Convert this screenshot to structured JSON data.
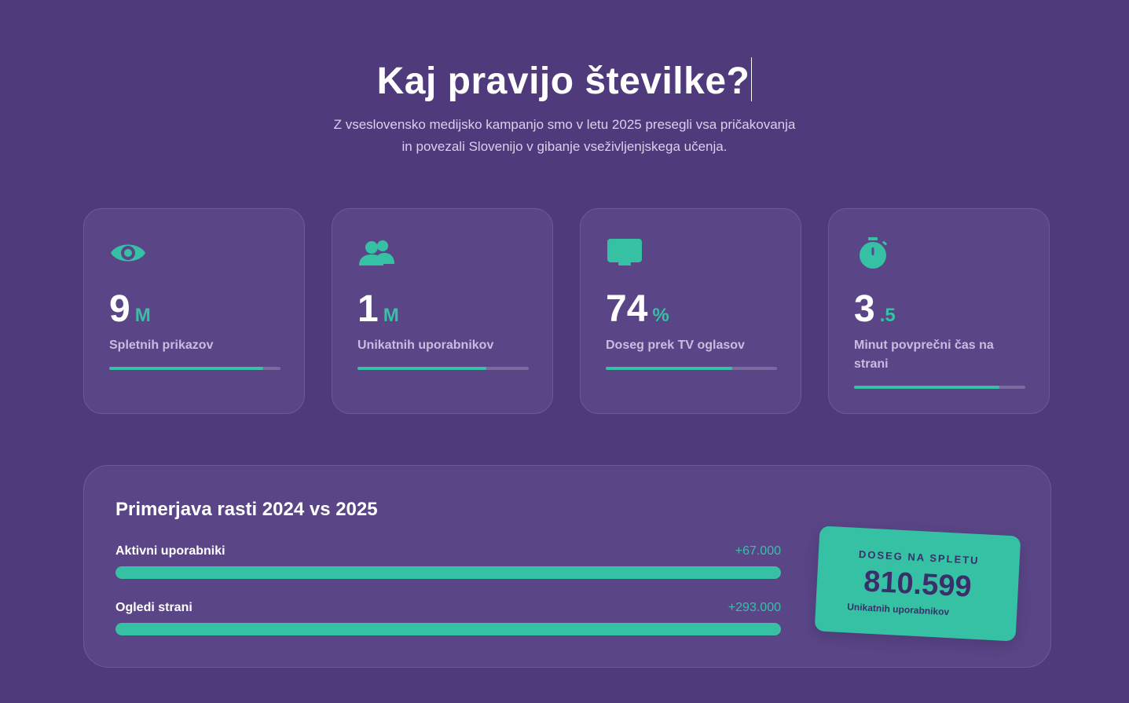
{
  "hero": {
    "title": "Kaj pravijo številke?",
    "subtitle_line1": "Z vseslovensko medijsko kampanjo smo v letu 2025 presegli vsa pričakovanja",
    "subtitle_line2": "in povezali Slovenijo v gibanje vseživljenjskega učenja."
  },
  "colors": {
    "background": "#4f3a7c",
    "card": "#5a4587",
    "accent": "#36c1a5",
    "text_muted": "#c8bde0"
  },
  "stats": [
    {
      "icon": "eye-icon",
      "value": "9",
      "unit": "M",
      "label": "Spletnih prikazov",
      "progress": 0.9
    },
    {
      "icon": "users-icon",
      "value": "1",
      "unit": "M",
      "label": "Unikatnih uporabnikov",
      "progress": 0.75
    },
    {
      "icon": "tv-icon",
      "value": "74",
      "unit": "%",
      "label": "Doseg prek TV oglasov",
      "progress": 0.74
    },
    {
      "icon": "stopwatch-icon",
      "value": "3",
      "unit": ".5",
      "label": "Minut povprečni čas na strani",
      "progress": 0.85
    }
  ],
  "growth": {
    "title": "Primerjava rasti 2024 vs 2025",
    "rows": [
      {
        "label": "Aktivni uporabniki",
        "value": "+67.000",
        "progress": 1.0
      },
      {
        "label": "Ogledi strani",
        "value": "+293.000",
        "progress": 1.0
      }
    ]
  },
  "badge": {
    "label": "DOSEG NA SPLETU",
    "value": "810.599",
    "sub": "Unikatnih uporabnikov"
  }
}
